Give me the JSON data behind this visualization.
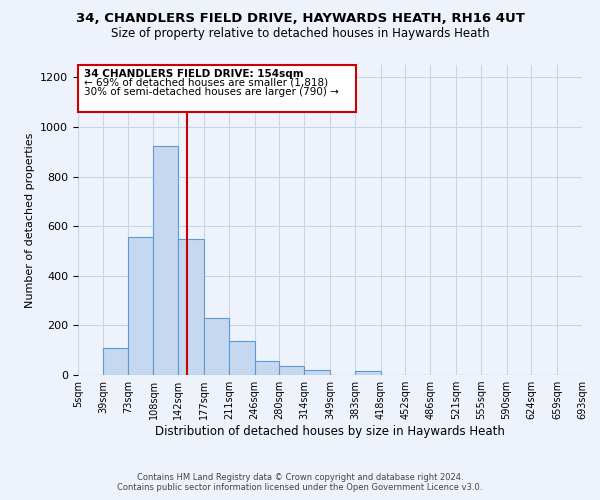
{
  "title": "34, CHANDLERS FIELD DRIVE, HAYWARDS HEATH, RH16 4UT",
  "subtitle": "Size of property relative to detached houses in Haywards Heath",
  "xlabel": "Distribution of detached houses by size in Haywards Heath",
  "ylabel": "Number of detached properties",
  "footer_line1": "Contains HM Land Registry data © Crown copyright and database right 2024.",
  "footer_line2": "Contains public sector information licensed under the Open Government Licence v3.0.",
  "annotation_line1": "34 CHANDLERS FIELD DRIVE: 154sqm",
  "annotation_line2": "← 69% of detached houses are smaller (1,818)",
  "annotation_line3": "30% of semi-detached houses are larger (790) →",
  "bar_edges": [
    5,
    39,
    73,
    108,
    142,
    177,
    211,
    246,
    280,
    314,
    349,
    383,
    418,
    452,
    486,
    521,
    555,
    590,
    624,
    659,
    693
  ],
  "bar_heights": [
    0,
    110,
    557,
    925,
    547,
    230,
    138,
    58,
    35,
    20,
    0,
    15,
    0,
    0,
    0,
    0,
    0,
    0,
    0,
    0
  ],
  "bar_color": "#c5d8f0",
  "bar_edge_color": "#5b9bd5",
  "property_line_x": 154,
  "box_color": "#cc0000",
  "bg_color": "#eef3fb",
  "grid_color": "#c8d4e8",
  "ylim": [
    0,
    1250
  ],
  "yticks": [
    0,
    200,
    400,
    600,
    800,
    1000,
    1200
  ]
}
